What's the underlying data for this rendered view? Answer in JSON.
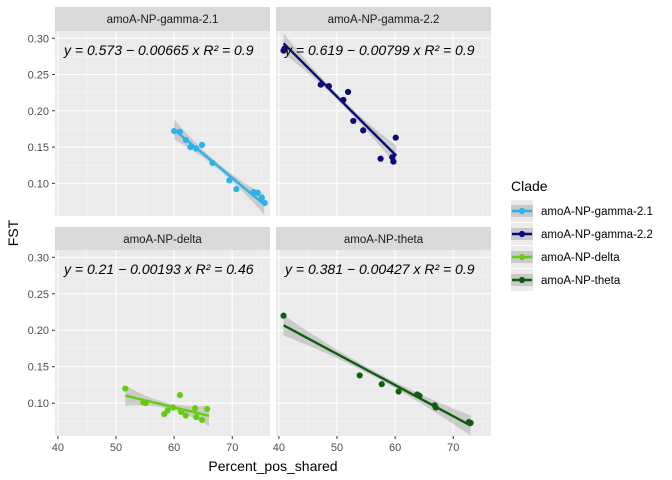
{
  "chart_data": {
    "type": "scatter",
    "facet_layout": "2x2",
    "xlabel": "Percent_pos_shared",
    "ylabel": "FST",
    "xlim": [
      39.5,
      76.5
    ],
    "ylim": [
      0.055,
      0.31
    ],
    "xticks": [
      40,
      50,
      60,
      70
    ],
    "yticks": [
      0.1,
      0.15,
      0.2,
      0.25,
      0.3
    ],
    "ytick_labels": [
      "0.10",
      "0.15",
      "0.20",
      "0.25",
      "0.30"
    ],
    "grid": true,
    "legend": {
      "title": "Clade",
      "position": "right",
      "entries": [
        "amoA-NP-gamma-2.1",
        "amoA-NP-gamma-2.2",
        "amoA-NP-delta",
        "amoA-NP-theta"
      ]
    },
    "panels": [
      {
        "strip": "amoA-NP-gamma-2.1",
        "clade": "amoA-NP-gamma-2.1",
        "color": "#2AB2EC",
        "equation": "y = 0.573 − 0.00665 x   R² = 0.9",
        "fit": {
          "intercept": 0.573,
          "slope": -0.00665,
          "x_range": [
            60,
            75.5
          ]
        },
        "points": [
          {
            "x": 60.0,
            "y": 0.172
          },
          {
            "x": 61.0,
            "y": 0.171
          },
          {
            "x": 62.0,
            "y": 0.16
          },
          {
            "x": 62.8,
            "y": 0.15
          },
          {
            "x": 63.8,
            "y": 0.148
          },
          {
            "x": 64.8,
            "y": 0.153
          },
          {
            "x": 66.6,
            "y": 0.128
          },
          {
            "x": 69.5,
            "y": 0.104
          },
          {
            "x": 70.7,
            "y": 0.092
          },
          {
            "x": 73.7,
            "y": 0.088
          },
          {
            "x": 74.4,
            "y": 0.087
          },
          {
            "x": 75.1,
            "y": 0.08
          },
          {
            "x": 75.6,
            "y": 0.073
          }
        ]
      },
      {
        "strip": "amoA-NP-gamma-2.2",
        "clade": "amoA-NP-gamma-2.2",
        "color": "#0A0A7A",
        "equation": "y = 0.619 − 0.00799 x   R² = 0.9",
        "fit": {
          "intercept": 0.619,
          "slope": -0.00799,
          "x_range": [
            40.8,
            60.2
          ]
        },
        "points": [
          {
            "x": 40.8,
            "y": 0.283
          },
          {
            "x": 41.0,
            "y": 0.286
          },
          {
            "x": 47.2,
            "y": 0.236
          },
          {
            "x": 48.6,
            "y": 0.234
          },
          {
            "x": 51.1,
            "y": 0.215
          },
          {
            "x": 51.9,
            "y": 0.226
          },
          {
            "x": 52.8,
            "y": 0.186
          },
          {
            "x": 54.5,
            "y": 0.173
          },
          {
            "x": 57.5,
            "y": 0.134
          },
          {
            "x": 59.5,
            "y": 0.136
          },
          {
            "x": 59.7,
            "y": 0.13
          },
          {
            "x": 60.1,
            "y": 0.163
          }
        ]
      },
      {
        "strip": "amoA-NP-delta",
        "clade": "amoA-NP-delta",
        "color": "#66CC11",
        "equation": "y = 0.21 − 0.00193 x   R² = 0.46",
        "fit": {
          "intercept": 0.21,
          "slope": -0.00193,
          "x_range": [
            51.6,
            66.0
          ]
        },
        "points": [
          {
            "x": 51.6,
            "y": 0.12
          },
          {
            "x": 54.7,
            "y": 0.101
          },
          {
            "x": 55.1,
            "y": 0.1
          },
          {
            "x": 58.3,
            "y": 0.085
          },
          {
            "x": 58.9,
            "y": 0.09
          },
          {
            "x": 59.8,
            "y": 0.094
          },
          {
            "x": 61.0,
            "y": 0.111
          },
          {
            "x": 61.2,
            "y": 0.088
          },
          {
            "x": 62.0,
            "y": 0.083
          },
          {
            "x": 63.6,
            "y": 0.093
          },
          {
            "x": 63.8,
            "y": 0.081
          },
          {
            "x": 64.8,
            "y": 0.077
          },
          {
            "x": 65.7,
            "y": 0.092
          }
        ]
      },
      {
        "strip": "amoA-NP-theta",
        "clade": "amoA-NP-theta",
        "color": "#0D5E0D",
        "equation": "y = 0.381 − 0.00427 x   R² = 0.9",
        "fit": {
          "intercept": 0.381,
          "slope": -0.00427,
          "x_range": [
            40.8,
            73.0
          ]
        },
        "points": [
          {
            "x": 40.8,
            "y": 0.22
          },
          {
            "x": 53.9,
            "y": 0.138
          },
          {
            "x": 57.7,
            "y": 0.126
          },
          {
            "x": 60.6,
            "y": 0.116
          },
          {
            "x": 63.8,
            "y": 0.112
          },
          {
            "x": 64.2,
            "y": 0.11
          },
          {
            "x": 66.8,
            "y": 0.097
          },
          {
            "x": 67.0,
            "y": 0.094
          },
          {
            "x": 72.7,
            "y": 0.074
          },
          {
            "x": 73.0,
            "y": 0.073
          }
        ]
      }
    ]
  }
}
